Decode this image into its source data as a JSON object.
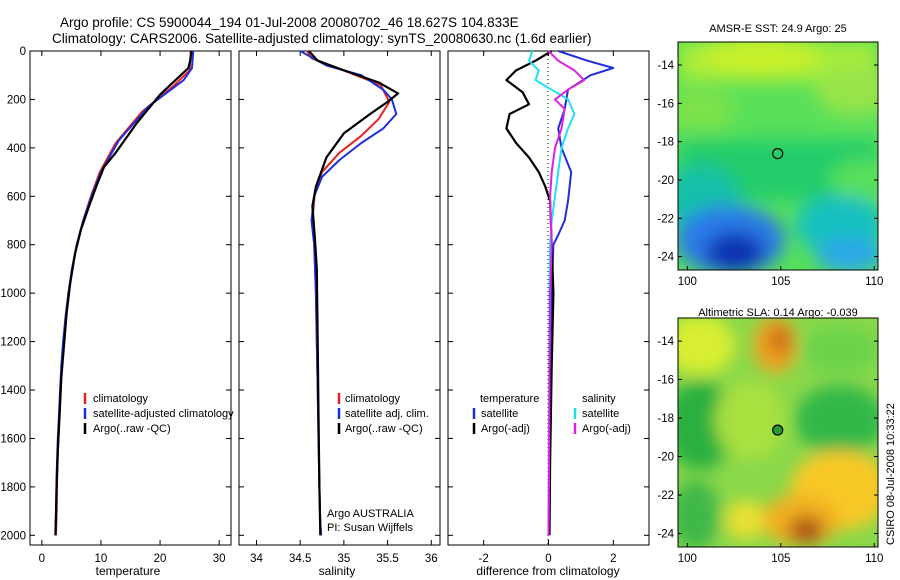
{
  "title_line1": "Argo profile: CS 5900044_194 01-Jul-2008 20080702_46 18.627S 104.833E",
  "title_line2": "Climatology: CARS2006. Satellite-adjusted climatology: synTS_20080630.nc (1.6d earlier)",
  "side_stamp": "CSIRO 08-Jul-2008 10:33:22",
  "colors": {
    "climatology": "#e8231f",
    "satellite": "#1f2ed8",
    "argo": "#000000",
    "sal_sat": "#22e0f0",
    "sal_argo": "#e020e0"
  },
  "chart_data": [
    {
      "type": "line",
      "id": "temperature",
      "xlabel": "temperature",
      "xlim": [
        -2,
        32
      ],
      "ylim": [
        2040,
        0
      ],
      "xticks": [
        0,
        10,
        20,
        30
      ],
      "yticks": [
        0,
        200,
        400,
        600,
        800,
        1000,
        1200,
        1400,
        1600,
        1800,
        2000
      ],
      "legend": [
        "climatology",
        "satellite-adjusted climatology",
        "Argo(..raw -QC)"
      ],
      "series": [
        {
          "name": "climatology",
          "color": "climatology",
          "x": [
            25.2,
            25.0,
            22.0,
            17.0,
            12.5,
            9.8,
            8.3,
            7.0,
            5.9,
            5.1,
            4.5,
            4.0,
            3.7,
            3.4,
            3.2,
            3.0,
            2.8,
            2.6,
            2.5,
            2.4
          ],
          "y": [
            0,
            80,
            150,
            250,
            380,
            500,
            600,
            700,
            800,
            900,
            1000,
            1100,
            1200,
            1300,
            1400,
            1500,
            1600,
            1750,
            1900,
            2000
          ]
        },
        {
          "name": "satellite-adjusted climatology",
          "color": "satellite",
          "x": [
            25.6,
            25.4,
            24.0,
            18.0,
            13.0,
            10.0,
            8.4,
            7.0,
            5.9,
            5.1,
            4.5,
            4.0,
            3.6,
            3.3,
            3.1,
            2.9,
            2.7,
            2.5,
            2.4,
            2.3
          ],
          "y": [
            0,
            70,
            120,
            230,
            370,
            500,
            600,
            700,
            800,
            900,
            1000,
            1100,
            1200,
            1300,
            1400,
            1500,
            1600,
            1750,
            1900,
            2000
          ]
        },
        {
          "name": "Argo(..raw -QC)",
          "color": "argo",
          "x": [
            25.3,
            25.1,
            24.8,
            20.0,
            16.0,
            12.5,
            10.5,
            9.2,
            8.0,
            6.6,
            5.6,
            4.8,
            4.2,
            3.8,
            3.3,
            3.0,
            2.7,
            2.5,
            2.4,
            2.3
          ],
          "y": [
            0,
            40,
            70,
            180,
            300,
            420,
            480,
            560,
            640,
            740,
            840,
            960,
            1080,
            1200,
            1350,
            1500,
            1650,
            1800,
            1920,
            2000
          ]
        }
      ]
    },
    {
      "type": "line",
      "id": "salinity",
      "xlabel": "salinity",
      "xlim": [
        33.8,
        36.1
      ],
      "ylim": [
        2040,
        0
      ],
      "xticks": [
        34,
        34.5,
        35,
        35.5,
        36
      ],
      "legend": [
        "climatology",
        "satellite adj. clim.",
        "Argo(..raw -QC)"
      ],
      "annotation": [
        "Argo AUSTRALIA",
        "PI: Susan Wijffels"
      ],
      "series": [
        {
          "name": "climatology",
          "color": "climatology",
          "x": [
            34.58,
            34.63,
            35.0,
            35.42,
            35.52,
            35.4,
            35.2,
            34.95,
            34.75,
            34.67,
            34.64,
            34.66,
            34.68,
            34.69,
            34.7,
            34.71,
            34.72,
            34.73,
            34.74
          ],
          "y": [
            0,
            30,
            80,
            140,
            210,
            280,
            350,
            420,
            500,
            580,
            700,
            800,
            1000,
            1200,
            1400,
            1600,
            1800,
            1950,
            2000
          ]
        },
        {
          "name": "satellite adj. clim.",
          "color": "satellite",
          "x": [
            34.5,
            34.8,
            35.2,
            35.45,
            35.55,
            35.6,
            35.45,
            35.2,
            34.95,
            34.75,
            34.66,
            34.63,
            34.66,
            34.68,
            34.69,
            34.7,
            34.71,
            34.72,
            34.73,
            34.74
          ],
          "y": [
            0,
            60,
            100,
            160,
            200,
            260,
            320,
            380,
            450,
            520,
            600,
            700,
            800,
            1000,
            1200,
            1400,
            1600,
            1800,
            1950,
            2000
          ]
        },
        {
          "name": "Argo(..raw -QC)",
          "color": "argo",
          "x": [
            34.6,
            34.7,
            35.0,
            35.4,
            35.62,
            35.5,
            35.3,
            35.0,
            34.8,
            34.68,
            34.64,
            34.67,
            34.69,
            34.7,
            34.71,
            34.72,
            34.73
          ],
          "y": [
            0,
            40,
            80,
            130,
            175,
            210,
            260,
            340,
            440,
            560,
            640,
            780,
            900,
            1200,
            1500,
            1800,
            2000
          ]
        }
      ]
    },
    {
      "type": "line",
      "id": "difference",
      "xlabel": "difference from climatology",
      "xlim": [
        -3.1,
        3.1
      ],
      "ylim": [
        2040,
        0
      ],
      "xticks": [
        -2,
        0,
        2
      ],
      "legend": [
        "temperature",
        "satellite",
        "Argo(-adj)",
        "salinity",
        "satellite",
        "Argo(-adj)"
      ],
      "series": [
        {
          "name": "temperature satellite",
          "color": "satellite",
          "x": [
            0.3,
            1.2,
            2.0,
            1.3,
            0.6,
            0.5,
            0.3,
            0.4,
            0.7,
            0.6,
            0.5,
            0.3,
            0.15,
            0.1,
            0.05,
            0.03,
            0.02,
            0.0
          ],
          "y": [
            0,
            40,
            70,
            100,
            160,
            240,
            320,
            400,
            500,
            620,
            700,
            760,
            800,
            1000,
            1200,
            1500,
            1800,
            2000
          ]
        },
        {
          "name": "temperature Argo(-adj)",
          "color": "argo",
          "x": [
            0.1,
            -0.4,
            -1.0,
            -1.3,
            -0.8,
            -0.6,
            -1.2,
            -1.3,
            -1.0,
            -0.6,
            -0.3,
            -0.1,
            0.05,
            0.1,
            0.15,
            0.1,
            0.05,
            0.03
          ],
          "y": [
            0,
            40,
            80,
            120,
            170,
            220,
            260,
            320,
            380,
            440,
            500,
            560,
            620,
            800,
            1000,
            1300,
            1700,
            2000
          ]
        },
        {
          "name": "salinity satellite",
          "color": "sal_sat",
          "x": [
            -0.5,
            -0.6,
            -0.3,
            -0.4,
            0.1,
            0.6,
            0.8,
            0.6,
            0.4,
            0.3,
            0.2,
            0.1,
            0.05,
            0.03,
            0.02,
            0.0
          ],
          "y": [
            0,
            40,
            80,
            120,
            160,
            200,
            260,
            320,
            400,
            500,
            600,
            700,
            800,
            1000,
            1500,
            2000
          ]
        },
        {
          "name": "salinity Argo(-adj)",
          "color": "sal_argo",
          "x": [
            0.0,
            0.3,
            0.8,
            1.1,
            0.6,
            0.2,
            0.5,
            0.4,
            0.2,
            0.1,
            0.05,
            0.1,
            0.05,
            0.03,
            0.02,
            0.0
          ],
          "y": [
            0,
            40,
            80,
            120,
            160,
            200,
            240,
            320,
            400,
            500,
            600,
            800,
            1000,
            1300,
            1700,
            2000
          ]
        }
      ]
    },
    {
      "type": "heatmap",
      "id": "sst_map",
      "title": "AMSR-E SST: 24.9 Argo: 25",
      "xlim": [
        99.5,
        110.2
      ],
      "ylim": [
        -24.7,
        -12.8
      ],
      "xticks": [
        100,
        105,
        110
      ],
      "yticks": [
        -14,
        -16,
        -18,
        -20,
        -22,
        -24
      ],
      "marker": {
        "lon": 104.833,
        "lat": -18.627,
        "style": "open-circle"
      }
    },
    {
      "type": "heatmap",
      "id": "sla_map",
      "title": "Altimetric SLA: 0.14 Argo: -0.039",
      "xlim": [
        99.5,
        110.2
      ],
      "ylim": [
        -24.7,
        -12.8
      ],
      "xticks": [
        100,
        105,
        110
      ],
      "yticks": [
        -14,
        -16,
        -18,
        -20,
        -22,
        -24
      ],
      "marker": {
        "lon": 104.833,
        "lat": -18.627,
        "style": "filled-circle"
      }
    }
  ]
}
